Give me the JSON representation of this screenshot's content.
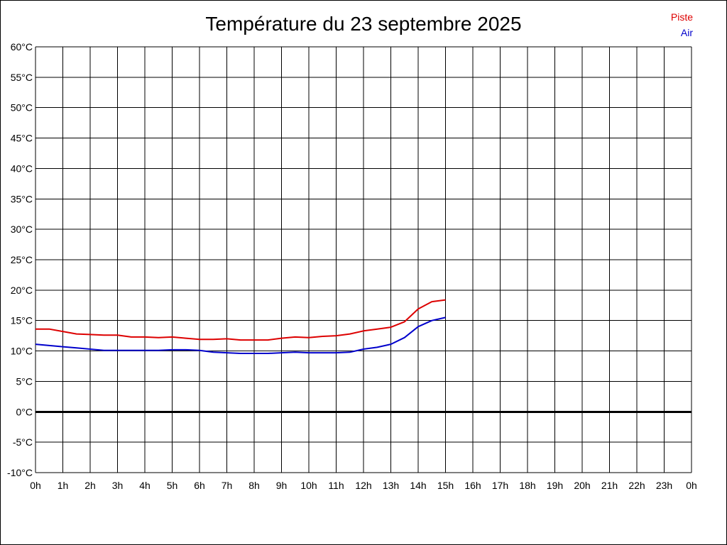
{
  "chart_data": {
    "type": "line",
    "title": "Température du 23 septembre 2025",
    "xlabel": "",
    "ylabel": "",
    "x_tick_labels": [
      "0h",
      "1h",
      "2h",
      "3h",
      "4h",
      "5h",
      "6h",
      "7h",
      "8h",
      "9h",
      "10h",
      "11h",
      "12h",
      "13h",
      "14h",
      "15h",
      "16h",
      "17h",
      "18h",
      "19h",
      "20h",
      "21h",
      "22h",
      "23h",
      "0h"
    ],
    "y_tick_labels": [
      "60°C",
      "55°C",
      "50°C",
      "45°C",
      "40°C",
      "35°C",
      "30°C",
      "25°C",
      "20°C",
      "15°C",
      "10°C",
      "5°C",
      "0°C",
      "-5°C",
      "-10°C"
    ],
    "xlim": [
      0,
      24
    ],
    "ylim": [
      -10,
      60
    ],
    "grid": true,
    "legend_position": "top-right",
    "x": [
      0,
      0.5,
      1,
      1.5,
      2,
      2.5,
      3,
      3.5,
      4,
      4.5,
      5,
      5.5,
      6,
      6.5,
      7,
      7.5,
      8,
      8.5,
      9,
      9.5,
      10,
      10.5,
      11,
      11.5,
      12,
      12.5,
      13,
      13.5,
      14,
      14.5,
      15
    ],
    "series": [
      {
        "name": "Piste",
        "color": "#dd0000",
        "values": [
          13.6,
          13.6,
          13.2,
          12.8,
          12.7,
          12.6,
          12.6,
          12.3,
          12.3,
          12.2,
          12.3,
          12.1,
          11.9,
          11.9,
          12.0,
          11.8,
          11.8,
          11.8,
          12.1,
          12.3,
          12.2,
          12.4,
          12.5,
          12.8,
          13.3,
          13.6,
          13.9,
          14.8,
          16.9,
          18.1,
          18.4
        ]
      },
      {
        "name": "Air",
        "color": "#0000cc",
        "values": [
          11.1,
          10.9,
          10.7,
          10.5,
          10.3,
          10.1,
          10.1,
          10.1,
          10.1,
          10.1,
          10.2,
          10.2,
          10.1,
          9.8,
          9.7,
          9.6,
          9.6,
          9.6,
          9.7,
          9.8,
          9.7,
          9.7,
          9.7,
          9.8,
          10.3,
          10.6,
          11.1,
          12.2,
          14.0,
          15.0,
          15.5
        ]
      }
    ]
  }
}
